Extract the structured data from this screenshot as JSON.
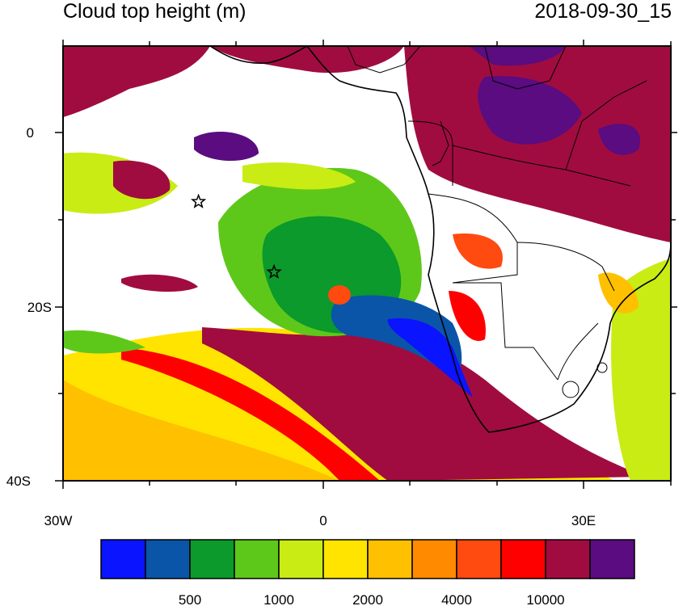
{
  "map": {
    "title": "Cloud top height (m)",
    "timestamp": "2018-09-30_15",
    "lon_labels": [
      "30W",
      "0",
      "30E"
    ],
    "lat_labels": [
      "0",
      "20S",
      "40S"
    ],
    "extent": {
      "lon_min": -30,
      "lon_max": 40,
      "lat_min": -40,
      "lat_max": 10
    },
    "markers": [
      {
        "name": "station-star",
        "lon": -14.4,
        "lat": -7.9
      },
      {
        "name": "station-star",
        "lon": -5.7,
        "lat": -16.0
      }
    ]
  },
  "colorbar": {
    "colors": [
      "#0a14ff",
      "#0a55a8",
      "#0b9a2b",
      "#5ec81a",
      "#c8ec14",
      "#ffe400",
      "#ffc000",
      "#ff8a00",
      "#ff4a10",
      "#ff0000",
      "#a00c40",
      "#5a0c80"
    ],
    "labels": [
      "500",
      "1000",
      "2000",
      "4000",
      "10000"
    ]
  }
}
